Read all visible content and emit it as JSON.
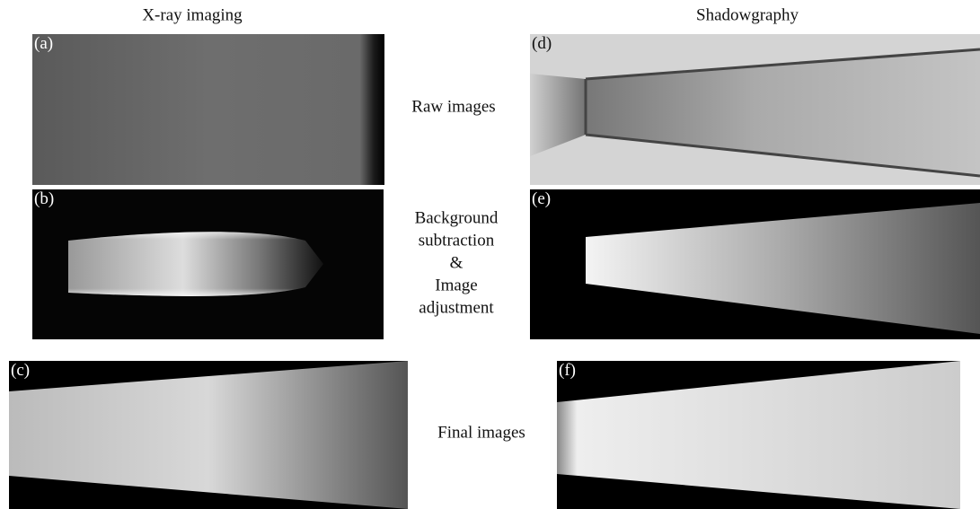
{
  "columns": {
    "left": "X-ray imaging",
    "right": "Shadowgraphy"
  },
  "panels": {
    "a": "(a)",
    "b": "(b)",
    "c": "(c)",
    "d": "(d)",
    "e": "(e)",
    "f": "(f)"
  },
  "rows": {
    "raw": "Raw images",
    "processing": [
      "Background",
      "subtraction",
      "&",
      "Image",
      "adjustment"
    ],
    "final": "Final images"
  }
}
